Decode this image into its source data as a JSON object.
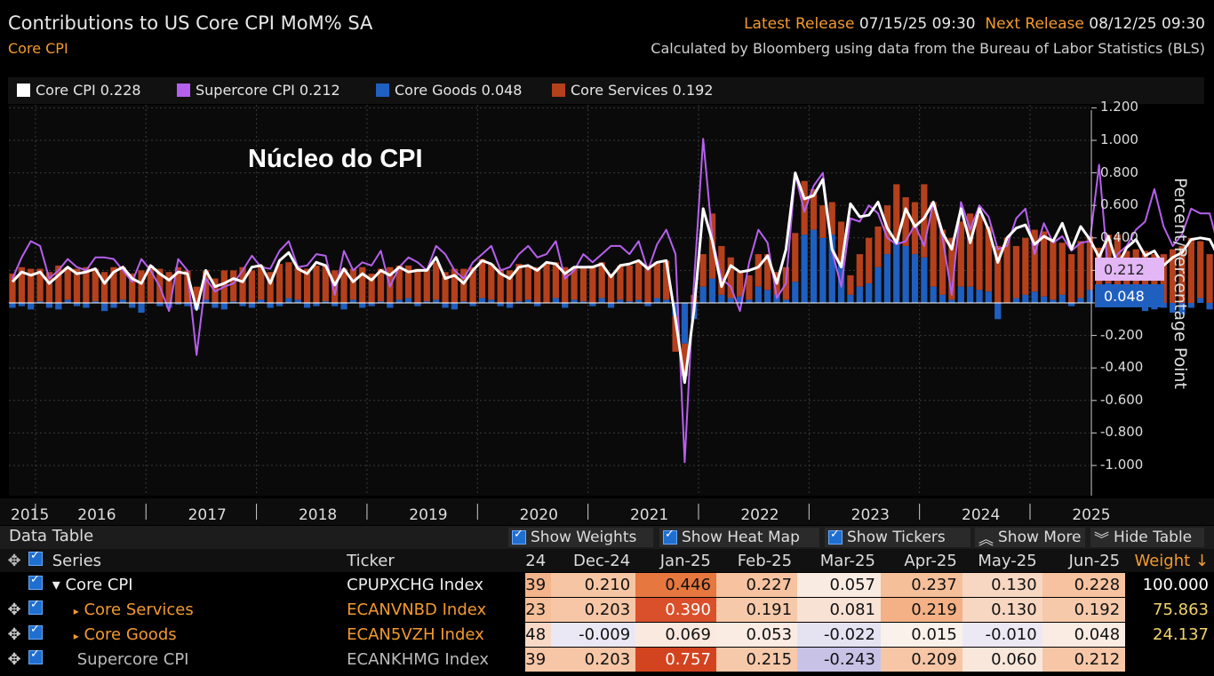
{
  "header": {
    "title": "Contributions to US Core CPI MoM% SA",
    "subtitle": "Core CPI",
    "latest_label": "Latest Release",
    "latest_value": "07/15/25 09:30",
    "next_label": "Next Release",
    "next_value": "08/12/25 09:30",
    "source": "Calculated by Bloomberg using data from the Bureau of Labor Statistics (BLS)"
  },
  "legend": [
    {
      "label": "Core CPI 0.228",
      "color": "#ffffff"
    },
    {
      "label": "Supercore CPI 0.212",
      "color": "#b660ee"
    },
    {
      "label": "Core Goods 0.048",
      "color": "#1f5fbf"
    },
    {
      "label": "Core Services 0.192",
      "color": "#b5401c"
    }
  ],
  "annotation": "Núcleo do CPI",
  "badges": {
    "supercore": "0.212",
    "goods": "0.048"
  },
  "chart_data": {
    "type": "bar",
    "ylabel": "Percent/Percentage Point",
    "ylim": [
      -1.1,
      1.2
    ],
    "yticks": [
      "1.200",
      "1.000",
      "0.800",
      "0.600",
      "0.400",
      "0.200",
      "0.000",
      "-0.200",
      "-0.400",
      "-0.600",
      "-0.800",
      "-1.000"
    ],
    "x_labels": [
      "2015",
      "2016",
      "2017",
      "2018",
      "2019",
      "2020",
      "2021",
      "2022",
      "2023",
      "2024",
      "2025"
    ],
    "x_start": "2015-10",
    "x_end": "2025-06",
    "grid": true,
    "series": [
      {
        "name": "Core Services",
        "type": "bar",
        "color": "#b5401c",
        "values": [
          0.18,
          0.22,
          0.21,
          0.2,
          0.19,
          0.23,
          0.2,
          0.21,
          0.22,
          0.2,
          0.19,
          0.22,
          0.2,
          0.18,
          0.2,
          0.23,
          0.21,
          0.19,
          0.22,
          0.2,
          0.1,
          0.18,
          0.15,
          0.2,
          0.19,
          0.22,
          0.2,
          0.21,
          0.19,
          0.24,
          0.22,
          0.2,
          0.21,
          0.23,
          0.22,
          0.2,
          0.21,
          0.19,
          0.22,
          0.18,
          0.2,
          0.22,
          0.21,
          0.2,
          0.21,
          0.2,
          0.23,
          0.19,
          0.21,
          0.2,
          0.22,
          0.24,
          0.22,
          0.21,
          0.2,
          0.23,
          0.21,
          0.22,
          0.24,
          0.22,
          0.22,
          0.2,
          0.21,
          0.23,
          0.22,
          0.18,
          0.21,
          0.22,
          0.24,
          0.23,
          0.22,
          0.24,
          -0.22,
          -0.2,
          0.05,
          0.2,
          0.4,
          0.3,
          0.25,
          0.15,
          0.15,
          0.2,
          0.22,
          0.14,
          0.2,
          0.3,
          0.33,
          0.25,
          0.2,
          0.2,
          0.25,
          0.12,
          0.2,
          0.28,
          0.25,
          0.3,
          0.35,
          0.3,
          0.32,
          0.45,
          0.52,
          0.4,
          0.38,
          0.4,
          0.45,
          0.46,
          0.4,
          0.35,
          0.4,
          0.32,
          0.35,
          0.38,
          0.4,
          0.36,
          0.32,
          0.3,
          0.35,
          0.33,
          0.28,
          0.3,
          0.32,
          0.3,
          0.33,
          0.32,
          0.3,
          0.3,
          0.33,
          0.35,
          0.4,
          0.35,
          0.3,
          0.35,
          0.3,
          0.2,
          0.18,
          0.22,
          0.26,
          0.3,
          0.28,
          0.3,
          0.26,
          0.3,
          0.26,
          0.3,
          0.2,
          0.2,
          0.13,
          0.08,
          0.19
        ]
      },
      {
        "name": "Core Goods",
        "type": "bar",
        "color": "#1f5fbf",
        "values": [
          -0.03,
          -0.02,
          -0.04,
          0.01,
          -0.03,
          -0.04,
          0.02,
          -0.02,
          -0.03,
          0.01,
          -0.05,
          -0.03,
          0.02,
          -0.03,
          -0.06,
          0.0,
          -0.02,
          -0.03,
          -0.01,
          -0.02,
          -0.04,
          0.02,
          -0.03,
          -0.04,
          0.01,
          -0.02,
          -0.03,
          0.02,
          -0.03,
          -0.02,
          0.03,
          0.02,
          -0.03,
          -0.02,
          0.01,
          -0.02,
          -0.04,
          0.02,
          -0.03,
          -0.02,
          0.01,
          -0.03,
          0.02,
          0.03,
          -0.02,
          0.01,
          0.02,
          -0.03,
          -0.04,
          0.01,
          -0.02,
          0.03,
          0.02,
          -0.02,
          -0.03,
          0.01,
          0.02,
          -0.02,
          0.0,
          0.03,
          -0.03,
          0.02,
          0.01,
          -0.02,
          0.03,
          -0.03,
          0.02,
          0.01,
          0.02,
          -0.02,
          0.03,
          0.02,
          -0.08,
          -0.25,
          -0.1,
          0.1,
          0.15,
          0.05,
          0.03,
          0.04,
          0.02,
          0.1,
          0.08,
          0.05,
          0.02,
          0.13,
          0.42,
          0.45,
          0.4,
          0.42,
          0.25,
          0.05,
          0.1,
          0.12,
          0.22,
          0.3,
          0.38,
          0.35,
          0.3,
          0.28,
          0.1,
          0.05,
          0.02,
          0.1,
          0.1,
          0.08,
          0.07,
          -0.1,
          0.0,
          0.03,
          0.05,
          0.07,
          0.04,
          0.02,
          0.05,
          -0.02,
          0.03,
          0.08,
          0.06,
          0.12,
          0.1,
          0.02,
          0.0,
          -0.05,
          -0.04,
          -0.03,
          -0.06,
          -0.07,
          -0.03,
          0.03,
          -0.04,
          -0.02,
          -0.06,
          -0.04,
          0.02,
          -0.04,
          -0.06,
          -0.02,
          0.03,
          -0.04,
          0.04,
          0.05,
          -0.01,
          0.07,
          0.05,
          -0.02,
          0.02,
          -0.01,
          0.05
        ]
      },
      {
        "name": "Core CPI",
        "type": "line",
        "color": "#ffffff",
        "values": [
          0.13,
          0.19,
          0.17,
          0.19,
          0.12,
          0.17,
          0.22,
          0.18,
          0.19,
          0.21,
          0.12,
          0.19,
          0.22,
          0.15,
          0.12,
          0.23,
          0.18,
          0.14,
          0.19,
          0.18,
          -0.04,
          0.2,
          0.1,
          0.12,
          0.15,
          0.13,
          0.22,
          0.23,
          0.12,
          0.26,
          0.31,
          0.21,
          0.18,
          0.25,
          0.23,
          0.11,
          0.21,
          0.13,
          0.18,
          0.14,
          0.2,
          0.17,
          0.22,
          0.19,
          0.2,
          0.2,
          0.28,
          0.15,
          0.17,
          0.12,
          0.2,
          0.26,
          0.24,
          0.18,
          0.15,
          0.22,
          0.23,
          0.2,
          0.25,
          0.24,
          0.18,
          0.22,
          0.22,
          0.22,
          0.24,
          0.16,
          0.23,
          0.24,
          0.26,
          0.21,
          0.25,
          0.26,
          -0.1,
          -0.49,
          -0.05,
          0.58,
          0.38,
          0.1,
          0.23,
          0.19,
          0.2,
          0.22,
          0.29,
          0.12,
          0.33,
          0.8,
          0.64,
          0.66,
          0.76,
          0.33,
          0.22,
          0.61,
          0.53,
          0.54,
          0.62,
          0.46,
          0.37,
          0.58,
          0.47,
          0.52,
          0.62,
          0.43,
          0.33,
          0.58,
          0.37,
          0.58,
          0.45,
          0.25,
          0.4,
          0.46,
          0.48,
          0.36,
          0.41,
          0.38,
          0.49,
          0.33,
          0.47,
          0.39,
          0.28,
          0.41,
          0.23,
          0.34,
          0.39,
          0.29,
          0.32,
          0.23,
          0.28,
          0.31,
          0.39,
          0.4,
          0.39,
          0.28,
          0.17,
          0.33,
          0.17,
          0.06,
          0.13,
          0.2,
          0.28,
          0.3,
          0.27,
          0.28,
          0.31,
          0.45,
          0.27,
          0.06,
          0.23,
          0.13,
          0.06,
          0.23
        ]
      },
      {
        "name": "Supercore CPI",
        "type": "line",
        "color": "#b660ee",
        "values": [
          0.15,
          0.28,
          0.38,
          0.35,
          0.15,
          0.2,
          0.27,
          0.22,
          0.2,
          0.28,
          0.28,
          0.27,
          0.2,
          0.13,
          0.27,
          0.2,
          0.1,
          -0.05,
          0.27,
          0.2,
          -0.32,
          0.15,
          0.07,
          0.1,
          0.12,
          0.2,
          0.29,
          0.22,
          0.21,
          0.32,
          0.38,
          0.22,
          0.23,
          0.3,
          0.29,
          0.05,
          0.32,
          0.2,
          0.25,
          0.23,
          0.32,
          0.1,
          0.22,
          0.28,
          0.25,
          0.2,
          0.35,
          0.3,
          0.2,
          0.15,
          0.25,
          0.3,
          0.35,
          0.2,
          0.22,
          0.3,
          0.35,
          0.28,
          0.3,
          0.38,
          0.15,
          0.2,
          0.3,
          0.25,
          0.3,
          0.35,
          0.35,
          0.3,
          0.38,
          0.2,
          0.36,
          0.45,
          0.3,
          -0.98,
          0.12,
          1.01,
          0.4,
          0.15,
          0.1,
          -0.05,
          0.25,
          0.45,
          0.37,
          0.03,
          0.12,
          0.79,
          0.56,
          0.72,
          0.8,
          0.32,
          0.1,
          0.52,
          0.5,
          0.6,
          0.55,
          0.4,
          0.36,
          0.38,
          0.48,
          0.35,
          0.62,
          0.4,
          0.05,
          0.62,
          0.45,
          0.6,
          0.53,
          0.33,
          0.35,
          0.52,
          0.58,
          0.3,
          0.49,
          0.37,
          0.41,
          0.32,
          0.37,
          0.38,
          0.85,
          0.18,
          0.3,
          0.35,
          0.45,
          0.5,
          0.7,
          0.47,
          0.35,
          0.42,
          0.58,
          0.55,
          0.55,
          0.34,
          0.13,
          0.05,
          0.13,
          0.31,
          0.43,
          0.35,
          0.3,
          0.35,
          0.4,
          0.76,
          0.34,
          -0.24,
          0.11,
          0.21,
          0.06,
          0.21
        ]
      }
    ]
  },
  "table": {
    "title": "Data Table",
    "buttons": [
      "Show Weights",
      "Show Heat Map",
      "Show Tickers",
      "Show More",
      "Hide Table"
    ],
    "headers": {
      "series": "Series",
      "ticker": "Ticker",
      "cut": "24",
      "weight": "Weight ↓",
      "months": [
        "Dec-24",
        "Jan-25",
        "Feb-25",
        "Mar-25",
        "Apr-25",
        "May-25",
        "Jun-25"
      ]
    },
    "rows": [
      {
        "name": "Core CPI",
        "ticker": "CPUPXCHG Index",
        "cut": "39",
        "values": [
          "0.210",
          "0.446",
          "0.227",
          "0.057",
          "0.237",
          "0.130",
          "0.228"
        ],
        "weight": "100.000"
      },
      {
        "name": "Core Services",
        "ticker": "ECANVNBD Index",
        "cut": "23",
        "values": [
          "0.203",
          "0.390",
          "0.191",
          "0.081",
          "0.219",
          "0.130",
          "0.192"
        ],
        "weight": "75.863"
      },
      {
        "name": "Core Goods",
        "ticker": "ECAN5VZH Index",
        "cut": "48",
        "values": [
          "-0.009",
          "0.069",
          "0.053",
          "-0.022",
          "0.015",
          "-0.010",
          "0.048"
        ],
        "weight": "24.137"
      },
      {
        "name": "Supercore CPI",
        "ticker": "ECANKHMG Index",
        "cut": "39",
        "values": [
          "0.203",
          "0.757",
          "0.215",
          "-0.243",
          "0.209",
          "0.060",
          "0.212"
        ],
        "weight": ""
      }
    ]
  }
}
